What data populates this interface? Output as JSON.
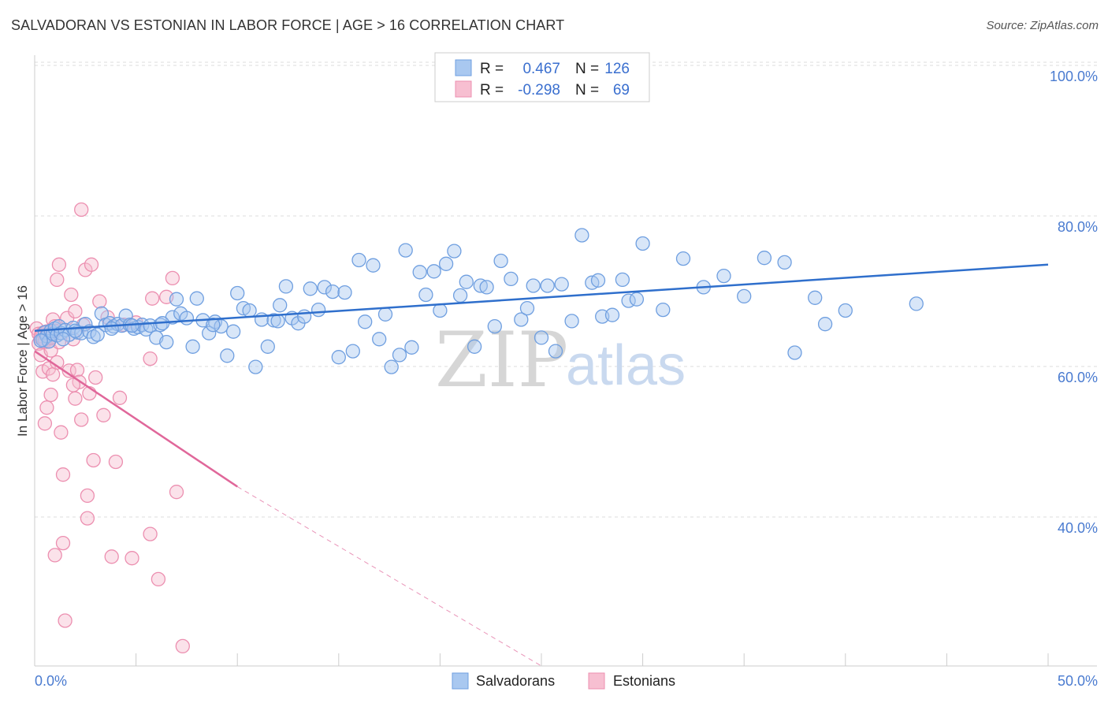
{
  "title": "SALVADORAN VS ESTONIAN IN LABOR FORCE | AGE > 16 CORRELATION CHART",
  "source": "Source: ZipAtlas.com",
  "watermark": {
    "zip": "ZIP",
    "atlas": "atlas"
  },
  "colors": {
    "blue_fill": "#a9c8f0",
    "blue_stroke": "#6f9fe0",
    "blue_line": "#2f6fcc",
    "pink_fill": "#f7bfd1",
    "pink_stroke": "#ec8fb0",
    "pink_line": "#e0679a",
    "grid": "#dddddd",
    "tick_text": "#4a7bd0"
  },
  "legend": {
    "rows": [
      {
        "r_label": "R =",
        "r_value": "0.467",
        "n_label": "N =",
        "n_value": "126"
      },
      {
        "r_label": "R =",
        "r_value": "-0.298",
        "n_label": "N =",
        "n_value": "69"
      }
    ]
  },
  "bottom_legend": [
    "Salvadorans",
    "Estonians"
  ],
  "chart_data": {
    "type": "scatter",
    "title": "SALVADORAN VS ESTONIAN IN LABOR FORCE | AGE > 16 CORRELATION CHART",
    "xlabel": "",
    "ylabel": "In Labor Force | Age > 16",
    "xlim": [
      0,
      50
    ],
    "ylim": [
      20,
      104
    ],
    "x_tick_labels": [
      "0.0%",
      "50.0%"
    ],
    "y_ticks": [
      40,
      60,
      80,
      100
    ],
    "y_tick_labels": [
      "40.0%",
      "60.0%",
      "80.0%",
      "100.0%"
    ],
    "grid": true,
    "legend_position": "top-center",
    "series": [
      {
        "name": "Salvadorans",
        "r": 0.467,
        "n": 126,
        "trend": {
          "x": [
            0,
            50
          ],
          "y": [
            66.2,
            75.0
          ]
        },
        "points": [
          [
            0.4,
            65.0
          ],
          [
            0.5,
            66.0
          ],
          [
            0.6,
            65.5
          ],
          [
            0.7,
            64.8
          ],
          [
            0.8,
            66.2
          ],
          [
            0.9,
            65.8
          ],
          [
            1.0,
            66.5
          ],
          [
            1.1,
            65.6
          ],
          [
            1.2,
            66.8
          ],
          [
            1.3,
            65.9
          ],
          [
            1.5,
            66.3
          ],
          [
            1.7,
            65.7
          ],
          [
            1.9,
            66.6
          ],
          [
            2.1,
            66.0
          ],
          [
            2.3,
            65.9
          ],
          [
            2.5,
            67.1
          ],
          [
            2.7,
            66.1
          ],
          [
            2.9,
            65.4
          ],
          [
            3.1,
            65.7
          ],
          [
            3.3,
            68.5
          ],
          [
            3.5,
            67.0
          ],
          [
            3.7,
            67.2
          ],
          [
            3.9,
            66.8
          ],
          [
            4.1,
            67.1
          ],
          [
            4.3,
            66.9
          ],
          [
            4.5,
            68.2
          ],
          [
            4.7,
            67.0
          ],
          [
            4.9,
            66.5
          ],
          [
            5.1,
            66.7
          ],
          [
            5.3,
            67.0
          ],
          [
            5.5,
            66.4
          ],
          [
            5.7,
            66.9
          ],
          [
            6.0,
            65.3
          ],
          [
            6.2,
            67.0
          ],
          [
            6.5,
            64.7
          ],
          [
            6.8,
            68.0
          ],
          [
            7.0,
            70.4
          ],
          [
            7.2,
            68.5
          ],
          [
            7.5,
            67.9
          ],
          [
            7.8,
            64.1
          ],
          [
            8.0,
            70.5
          ],
          [
            8.3,
            67.6
          ],
          [
            8.6,
            65.9
          ],
          [
            8.9,
            67.4
          ],
          [
            9.2,
            66.8
          ],
          [
            9.5,
            62.9
          ],
          [
            9.8,
            66.1
          ],
          [
            10.0,
            71.2
          ],
          [
            10.3,
            69.2
          ],
          [
            10.6,
            68.9
          ],
          [
            10.9,
            61.4
          ],
          [
            11.2,
            67.7
          ],
          [
            11.5,
            64.1
          ],
          [
            11.8,
            67.6
          ],
          [
            12.1,
            69.6
          ],
          [
            12.4,
            72.1
          ],
          [
            12.7,
            67.9
          ],
          [
            13.0,
            67.2
          ],
          [
            13.3,
            68.1
          ],
          [
            13.6,
            71.8
          ],
          [
            14.0,
            69.0
          ],
          [
            14.3,
            72.0
          ],
          [
            14.7,
            71.4
          ],
          [
            15.0,
            62.7
          ],
          [
            15.3,
            71.3
          ],
          [
            15.7,
            63.5
          ],
          [
            16.0,
            75.6
          ],
          [
            16.3,
            67.4
          ],
          [
            16.7,
            74.9
          ],
          [
            17.0,
            65.1
          ],
          [
            17.3,
            68.4
          ],
          [
            17.6,
            61.4
          ],
          [
            18.0,
            63.0
          ],
          [
            18.3,
            76.9
          ],
          [
            18.6,
            64.0
          ],
          [
            19.0,
            74.0
          ],
          [
            19.3,
            71.0
          ],
          [
            19.7,
            74.1
          ],
          [
            20.0,
            68.9
          ],
          [
            20.3,
            75.1
          ],
          [
            20.7,
            76.8
          ],
          [
            21.0,
            70.9
          ],
          [
            21.3,
            72.7
          ],
          [
            21.7,
            64.1
          ],
          [
            22.0,
            72.2
          ],
          [
            22.3,
            72.0
          ],
          [
            22.7,
            66.8
          ],
          [
            23.0,
            75.5
          ],
          [
            23.5,
            73.1
          ],
          [
            24.0,
            67.7
          ],
          [
            24.3,
            69.2
          ],
          [
            24.6,
            72.2
          ],
          [
            25.0,
            65.3
          ],
          [
            25.3,
            72.2
          ],
          [
            25.7,
            63.5
          ],
          [
            26.0,
            72.4
          ],
          [
            26.5,
            67.5
          ],
          [
            27.0,
            78.9
          ],
          [
            27.5,
            72.6
          ],
          [
            27.8,
            72.9
          ],
          [
            28.0,
            68.1
          ],
          [
            28.5,
            68.3
          ],
          [
            29.0,
            73.0
          ],
          [
            29.3,
            70.2
          ],
          [
            29.7,
            70.4
          ],
          [
            30.0,
            77.8
          ],
          [
            31.0,
            69.0
          ],
          [
            32.0,
            75.8
          ],
          [
            33.0,
            72.0
          ],
          [
            34.0,
            73.5
          ],
          [
            35.0,
            70.8
          ],
          [
            36.0,
            75.9
          ],
          [
            37.0,
            75.3
          ],
          [
            37.5,
            63.3
          ],
          [
            38.5,
            70.6
          ],
          [
            39.0,
            67.1
          ],
          [
            40.0,
            68.9
          ],
          [
            43.5,
            69.8
          ],
          [
            2.0,
            66.2
          ],
          [
            3.8,
            66.5
          ],
          [
            1.4,
            65.1
          ],
          [
            0.3,
            64.9
          ],
          [
            4.8,
            66.9
          ],
          [
            6.3,
            67.2
          ],
          [
            8.8,
            67.0
          ],
          [
            12.0,
            67.5
          ]
        ]
      },
      {
        "name": "Estonians",
        "r": -0.298,
        "n": 69,
        "trend": {
          "x": [
            0,
            10
          ],
          "y": [
            63.5,
            45.5
          ]
        },
        "trend_dashed": {
          "x": [
            10,
            25
          ],
          "y": [
            45.5,
            18.5
          ]
        },
        "points": [
          [
            0.1,
            66.5
          ],
          [
            0.2,
            65.8
          ],
          [
            0.2,
            64.5
          ],
          [
            0.3,
            65.2
          ],
          [
            0.3,
            63.0
          ],
          [
            0.4,
            65.9
          ],
          [
            0.4,
            60.8
          ],
          [
            0.5,
            64.7
          ],
          [
            0.5,
            53.9
          ],
          [
            0.6,
            66.1
          ],
          [
            0.6,
            56.0
          ],
          [
            0.7,
            65.1
          ],
          [
            0.7,
            61.2
          ],
          [
            0.8,
            57.7
          ],
          [
            0.8,
            63.6
          ],
          [
            0.9,
            67.7
          ],
          [
            0.9,
            60.4
          ],
          [
            1.0,
            66.8
          ],
          [
            1.0,
            36.4
          ],
          [
            1.1,
            73.0
          ],
          [
            1.1,
            62.0
          ],
          [
            1.2,
            75.0
          ],
          [
            1.2,
            64.7
          ],
          [
            1.3,
            52.7
          ],
          [
            1.4,
            47.1
          ],
          [
            1.4,
            38.0
          ],
          [
            1.5,
            27.7
          ],
          [
            1.6,
            67.9
          ],
          [
            1.7,
            60.9
          ],
          [
            1.8,
            71.0
          ],
          [
            1.9,
            65.1
          ],
          [
            2.0,
            68.8
          ],
          [
            2.0,
            57.2
          ],
          [
            2.1,
            61.0
          ],
          [
            2.2,
            59.4
          ],
          [
            2.3,
            54.4
          ],
          [
            2.4,
            67.0
          ],
          [
            2.5,
            74.3
          ],
          [
            2.6,
            44.3
          ],
          [
            2.6,
            41.3
          ],
          [
            2.7,
            57.9
          ],
          [
            2.8,
            75.0
          ],
          [
            2.9,
            49.0
          ],
          [
            3.0,
            60.0
          ],
          [
            3.2,
            70.1
          ],
          [
            3.4,
            55.0
          ],
          [
            3.6,
            68.0
          ],
          [
            3.8,
            36.2
          ],
          [
            4.0,
            48.8
          ],
          [
            4.2,
            57.3
          ],
          [
            4.4,
            67.0
          ],
          [
            4.8,
            36.0
          ],
          [
            5.0,
            67.3
          ],
          [
            5.7,
            62.5
          ],
          [
            5.7,
            39.2
          ],
          [
            5.8,
            70.5
          ],
          [
            6.1,
            33.2
          ],
          [
            6.5,
            70.7
          ],
          [
            6.8,
            73.2
          ],
          [
            7.0,
            44.8
          ],
          [
            7.3,
            24.3
          ],
          [
            0.3,
            65.5
          ],
          [
            0.5,
            64.9
          ],
          [
            0.6,
            65.7
          ],
          [
            0.7,
            64.8
          ],
          [
            0.8,
            65.3
          ],
          [
            1.0,
            66.2
          ],
          [
            2.3,
            82.3
          ],
          [
            1.9,
            59.0
          ]
        ]
      }
    ]
  }
}
